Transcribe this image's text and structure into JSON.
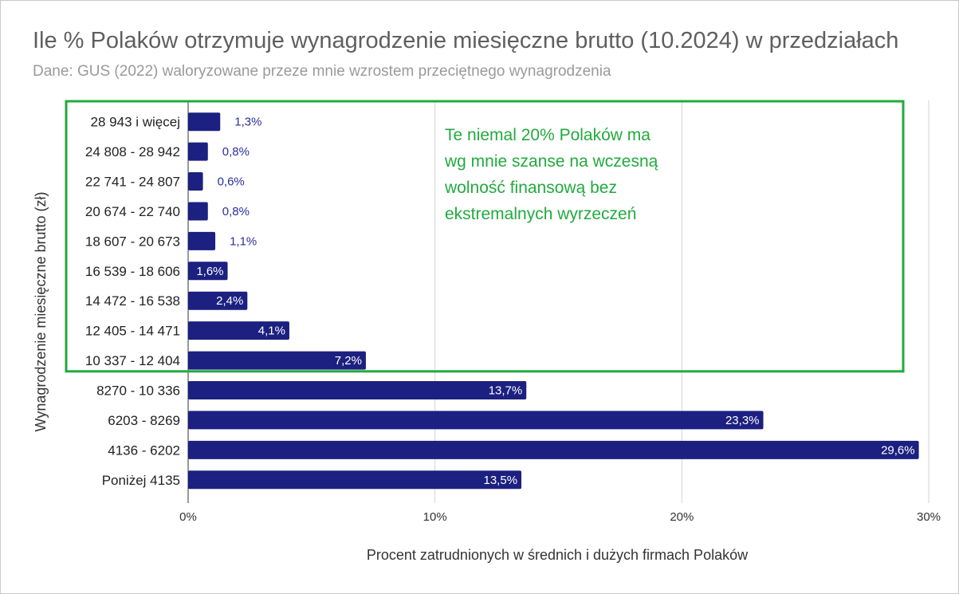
{
  "chart_data": {
    "type": "bar",
    "orientation": "horizontal",
    "title": "Ile % Polaków otrzymuje wynagrodzenie miesięczne brutto (10.2024) w przedziałach",
    "subtitle": "Dane: GUS (2022) waloryzowane przeze mnie wzrostem przeciętnego wynagrodzenia",
    "xlabel": "Procent zatrudnionych w średnich i dużych firmach Polaków",
    "ylabel": "Wynagrodzenie miesięczne brutto (zł)",
    "xlim": [
      0,
      30
    ],
    "x_ticks": [
      "0%",
      "10%",
      "20%",
      "30%"
    ],
    "grid": true,
    "bar_color": "#1c2080",
    "categories": [
      "28 943 i więcej",
      "24 808 - 28 942",
      "22 741 - 24 807",
      "20 674 - 22 740",
      "18 607 - 20 673",
      "16 539 - 18 606",
      "14 472 - 16 538",
      "12 405 - 14 471",
      "10 337 - 12 404",
      "8270 - 10 336",
      "6203 - 8269",
      "4136 - 6202",
      "Poniżej 4135"
    ],
    "values": [
      1.3,
      0.8,
      0.6,
      0.8,
      1.1,
      1.6,
      2.4,
      4.1,
      7.2,
      13.7,
      23.3,
      29.6,
      13.5
    ],
    "value_labels": [
      "1,3%",
      "0,8%",
      "0,6%",
      "0,8%",
      "1,1%",
      "1,6%",
      "2,4%",
      "4,1%",
      "7,2%",
      "13,7%",
      "23,3%",
      "29,6%",
      "13,5%"
    ],
    "highlight": {
      "from_category": "28 943 i więcej",
      "to_category": "10 337 - 12 404",
      "color": "#22aa3f",
      "note_lines": [
        "Te niemal 20% Polaków ma",
        "wg mnie szanse na wczesną",
        "wolność finansową bez",
        "ekstremalnych wyrzeczeń"
      ]
    }
  }
}
